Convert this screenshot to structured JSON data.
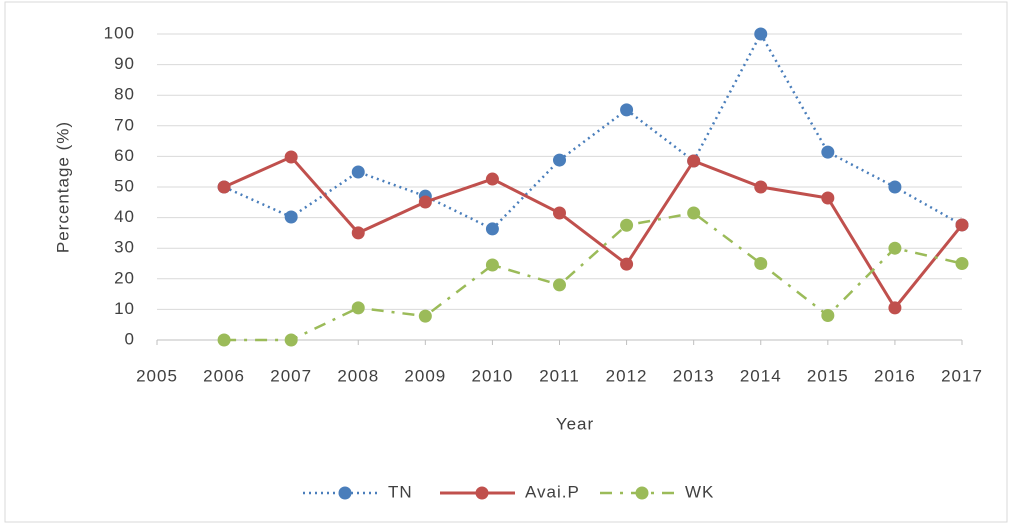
{
  "chart_data": {
    "type": "line",
    "x_label": "Year",
    "y_label": "Percentage (%)",
    "x": [
      2006,
      2007,
      2008,
      2009,
      2010,
      2011,
      2012,
      2013,
      2014,
      2015,
      2016,
      2017
    ],
    "series": [
      {
        "name": "TN",
        "color": "#4a7ebb",
        "style": "dotted",
        "values": [
          50,
          40.2,
          54.9,
          47,
          36.3,
          58.8,
          75.2,
          58.5,
          100,
          61.4,
          50,
          37.6
        ]
      },
      {
        "name": "Avai.P",
        "color": "#c0504d",
        "style": "solid",
        "values": [
          50,
          59.8,
          35,
          45.1,
          52.6,
          41.5,
          24.8,
          58.5,
          50,
          46.4,
          10.5,
          37.6
        ]
      },
      {
        "name": "WK",
        "color": "#9bbb59",
        "style": "dashdot",
        "values": [
          0,
          0,
          10.5,
          7.8,
          24.5,
          18,
          37.5,
          41.5,
          25,
          8,
          30,
          25
        ]
      }
    ],
    "xlim": [
      2005,
      2017
    ],
    "xticks": [
      2005,
      2006,
      2007,
      2008,
      2009,
      2010,
      2011,
      2012,
      2013,
      2014,
      2015,
      2016,
      2017
    ],
    "ylim": [
      0,
      100
    ],
    "yticks": [
      0,
      10,
      20,
      30,
      40,
      50,
      60,
      70,
      80,
      90,
      100
    ],
    "grid": true,
    "legend": "bottom"
  }
}
